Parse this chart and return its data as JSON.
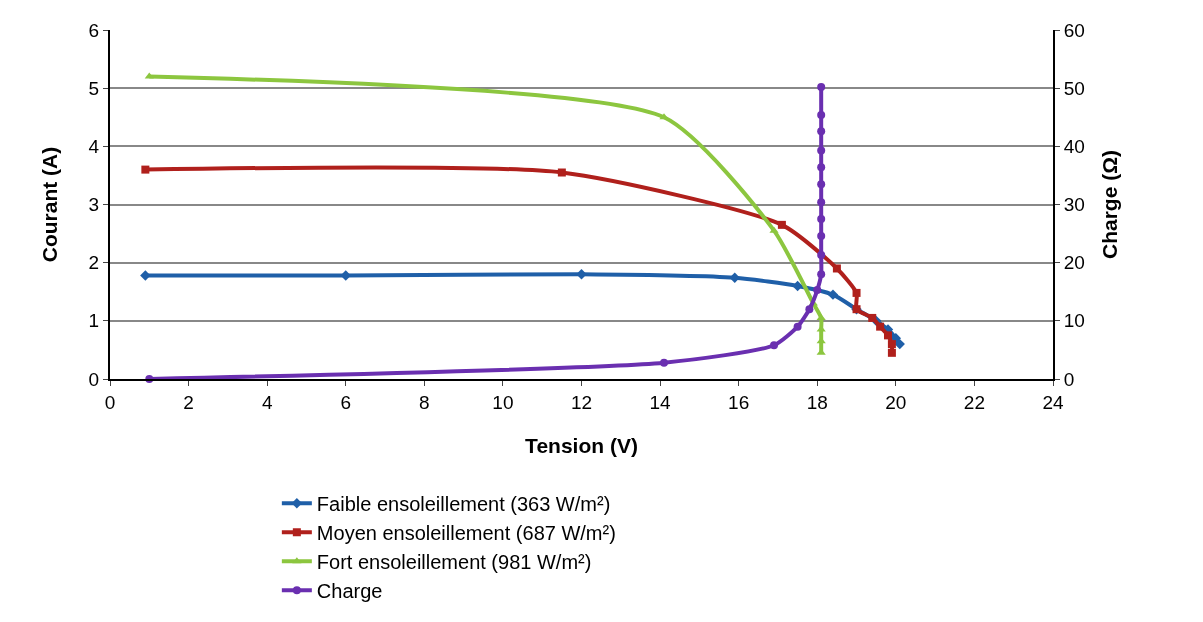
{
  "chart_data": {
    "type": "line",
    "xlabel": "Tension (V)",
    "ylabel": "Courant (A)",
    "y2label": "Charge (Ω)",
    "xlim": [
      0,
      24
    ],
    "xticks": [
      0,
      2,
      4,
      6,
      8,
      10,
      12,
      14,
      16,
      18,
      20,
      22,
      24
    ],
    "ylim": [
      0,
      6
    ],
    "yticks": [
      0,
      1,
      2,
      3,
      4,
      5,
      6
    ],
    "y2lim": [
      0,
      60
    ],
    "y2ticks": [
      0,
      10,
      20,
      30,
      40,
      50,
      60
    ],
    "grid": "y",
    "legend": "bottom",
    "series": [
      {
        "name": "Faible ensoleillement (363 W/m²)",
        "color": "#1f5fa8",
        "marker": "diamond",
        "x": [
          0.9,
          6,
          12,
          15.9,
          17.5,
          18.4,
          19,
          19.5,
          19.8,
          20,
          20.1
        ],
        "values": [
          1.78,
          1.78,
          1.8,
          1.74,
          1.6,
          1.45,
          1.2,
          1,
          0.85,
          0.7,
          0.6
        ]
      },
      {
        "name": "Moyen ensoleillement (687 W/m²)",
        "color": "#b0201c",
        "marker": "square",
        "x": [
          0.9,
          11.5,
          17.1,
          18.5,
          19,
          19,
          19.4,
          19.6,
          19.8,
          19.9,
          19.9
        ],
        "values": [
          3.6,
          3.55,
          2.65,
          1.9,
          1.48,
          1.2,
          1.05,
          0.9,
          0.75,
          0.6,
          0.45
        ]
      },
      {
        "name": "Fort ensoleillement (981 W/m²)",
        "color": "#8cc63f",
        "marker": "triangle",
        "x": [
          1,
          14.1,
          16.9,
          17.9,
          18.1,
          18.1,
          18.1,
          18.1
        ],
        "values": [
          5.2,
          4.5,
          2.55,
          1.3,
          1.05,
          0.85,
          0.65,
          0.45
        ]
      },
      {
        "name": "Charge",
        "color": "#6a2fb0",
        "marker": "circle",
        "axis": "y2",
        "x": [
          1,
          14.1,
          16.9,
          17.5,
          17.8,
          18,
          18.1,
          18.1,
          18.1,
          18.1,
          18.1,
          18.1,
          18.1,
          18.1,
          18.1,
          18.1,
          18.1
        ],
        "values": [
          0,
          2.8,
          5.8,
          9,
          12,
          15.3,
          18,
          21.3,
          24.6,
          27.5,
          30.4,
          33.5,
          36.4,
          39.3,
          42.6,
          45.4,
          50.2
        ]
      }
    ]
  }
}
